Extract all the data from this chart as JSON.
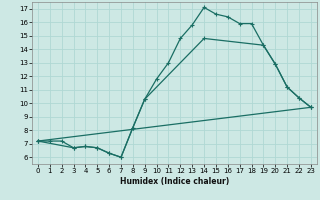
{
  "xlabel": "Humidex (Indice chaleur)",
  "bg_color": "#cde8e4",
  "line_color": "#1a6e64",
  "grid_color": "#b0d8d4",
  "xlim": [
    -0.5,
    23.5
  ],
  "ylim": [
    5.5,
    17.5
  ],
  "xticks": [
    0,
    1,
    2,
    3,
    4,
    5,
    6,
    7,
    8,
    9,
    10,
    11,
    12,
    13,
    14,
    15,
    16,
    17,
    18,
    19,
    20,
    21,
    22,
    23
  ],
  "yticks": [
    6,
    7,
    8,
    9,
    10,
    11,
    12,
    13,
    14,
    15,
    16,
    17
  ],
  "line1_x": [
    0,
    1,
    2,
    3,
    4,
    5,
    6,
    7,
    8,
    9,
    10,
    11,
    12,
    13,
    14,
    15,
    16,
    17,
    18,
    19,
    20,
    21,
    22,
    23
  ],
  "line1_y": [
    7.2,
    7.2,
    7.2,
    6.7,
    6.8,
    6.7,
    6.3,
    6.0,
    8.2,
    10.3,
    11.8,
    13.0,
    14.8,
    15.8,
    17.1,
    16.6,
    16.4,
    15.9,
    15.9,
    14.3,
    12.9,
    11.2,
    10.4,
    9.7
  ],
  "line2_x": [
    0,
    3,
    4,
    5,
    6,
    7,
    8,
    9,
    14,
    19,
    20,
    21,
    22,
    23
  ],
  "line2_y": [
    7.2,
    6.7,
    6.8,
    6.7,
    6.3,
    6.0,
    8.2,
    10.3,
    14.8,
    14.3,
    12.9,
    11.2,
    10.4,
    9.7
  ],
  "line3_x": [
    0,
    23
  ],
  "line3_y": [
    7.2,
    9.7
  ]
}
